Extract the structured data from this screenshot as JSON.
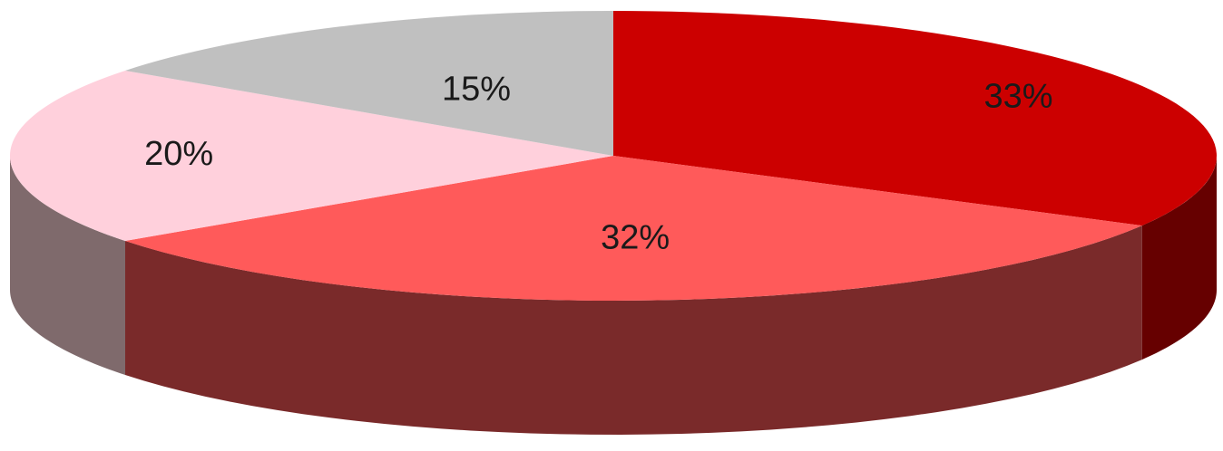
{
  "chart_data": {
    "type": "pie",
    "title": "",
    "three_d": true,
    "legend": "none",
    "slices": [
      {
        "label": "33%",
        "value": 33,
        "color": "#cc0000",
        "side_color": "#660000"
      },
      {
        "label": "32%",
        "value": 32,
        "color": "#ff5a5a",
        "side_color": "#7a2a2a"
      },
      {
        "label": "20%",
        "value": 20,
        "color": "#ffd0dc",
        "side_color": "#7f6a6c"
      },
      {
        "label": "15%",
        "value": 15,
        "color": "#c0c0c0",
        "side_color": "#7a7a7a"
      }
    ]
  }
}
